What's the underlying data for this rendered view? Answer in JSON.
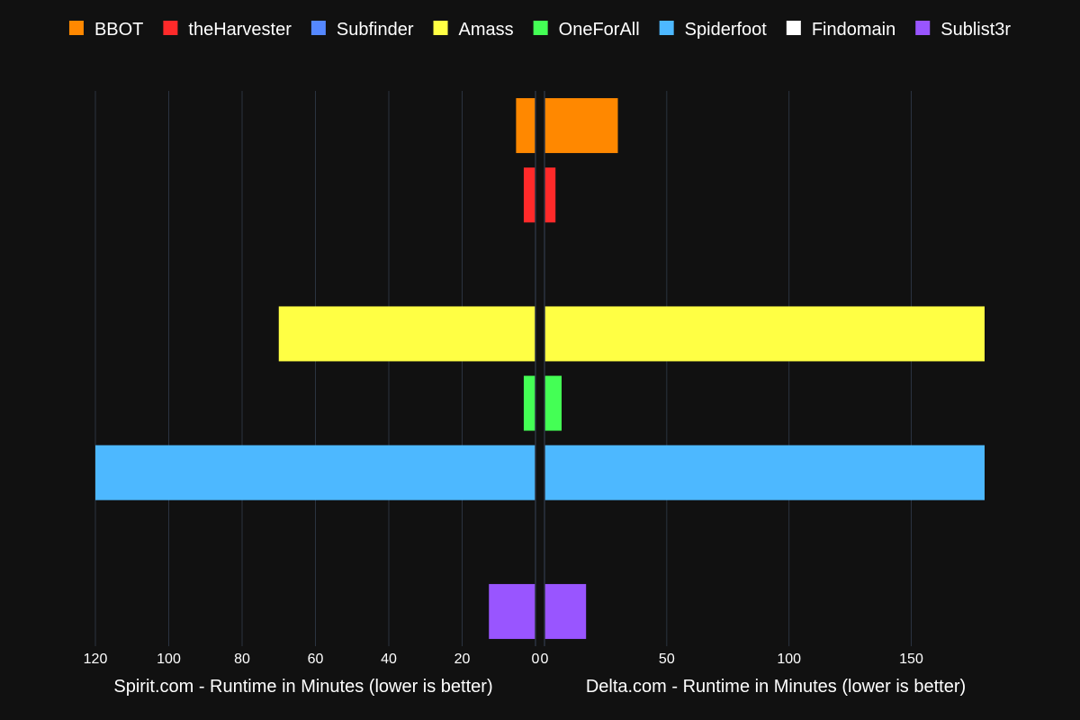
{
  "chart_data": {
    "type": "bar",
    "orientation": "horizontal-butterfly",
    "categories": [
      "BBOT",
      "theHarvester",
      "Subfinder",
      "Amass",
      "OneForAll",
      "Spiderfoot",
      "Findomain",
      "Sublist3r"
    ],
    "colors": [
      "#ff8800",
      "#ff2a2a",
      "#5588ff",
      "#ffff44",
      "#44ff55",
      "#4db8ff",
      "#ffffff",
      "#9955ff"
    ],
    "legend": [
      "BBOT",
      "theHarvester",
      "Subfinder",
      "Amass",
      "OneForAll",
      "Spiderfoot",
      "Findomain",
      "Sublist3r"
    ],
    "legend_position": "top-center",
    "grid": true,
    "left_panel": {
      "xlabel": "Spirit.com - Runtime in Minutes (lower is better)",
      "xlim": [
        120,
        0
      ],
      "ticks": [
        120,
        100,
        80,
        60,
        40,
        20,
        0
      ],
      "tick_labels": [
        "120",
        "100",
        "80",
        "60",
        "40",
        "20",
        "0"
      ],
      "values": [
        5.3,
        3.2,
        0.05,
        70,
        3.2,
        120,
        0.05,
        12.7
      ]
    },
    "right_panel": {
      "xlabel": "Delta.com - Runtime in Minutes (lower is better)",
      "xlim": [
        0,
        180
      ],
      "ticks": [
        0,
        50,
        100,
        150
      ],
      "tick_labels": [
        "0",
        "50",
        "100",
        "150"
      ],
      "values": [
        30,
        4.5,
        0.05,
        180,
        7,
        180,
        0.1,
        17
      ]
    }
  }
}
